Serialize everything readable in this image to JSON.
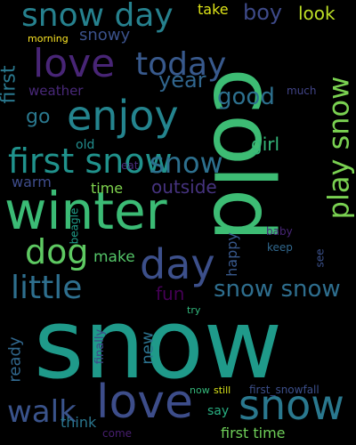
{
  "background": "#000000",
  "words": [
    {
      "text": "snow",
      "color": "#1f9a8a"
    },
    {
      "text": "cold",
      "color": "#3dbc74"
    },
    {
      "text": "winter",
      "color": "#3bbb75"
    },
    {
      "text": "enjoy",
      "color": "#24848e"
    },
    {
      "text": "love",
      "color": "#3d4d8a"
    },
    {
      "text": "love",
      "color": "#482576"
    },
    {
      "text": "snow",
      "color": "#2a788e"
    },
    {
      "text": "snow day",
      "color": "#26818e"
    },
    {
      "text": "first snow",
      "color": "#20928c"
    },
    {
      "text": "today",
      "color": "#38598c"
    },
    {
      "text": "day",
      "color": "#3c4f8a"
    },
    {
      "text": "dog",
      "color": "#5ec962"
    },
    {
      "text": "little",
      "color": "#2e6f8e"
    },
    {
      "text": "play snow",
      "color": "#7ad151"
    },
    {
      "text": "snow",
      "color": "#2d708e"
    },
    {
      "text": "snow snow",
      "color": "#2e6e8e"
    },
    {
      "text": "walk",
      "color": "#3a538b"
    },
    {
      "text": "good",
      "color": "#2d708e"
    },
    {
      "text": "boy",
      "color": "#3e4a89"
    },
    {
      "text": "year",
      "color": "#31668e"
    },
    {
      "text": "outside",
      "color": "#46337f"
    },
    {
      "text": "girl",
      "color": "#35b779"
    },
    {
      "text": "first",
      "color": "#2a788e"
    },
    {
      "text": "snowy",
      "color": "#3b528b"
    },
    {
      "text": "look",
      "color": "#bddf26"
    },
    {
      "text": "take",
      "color": "#dde318"
    },
    {
      "text": "morning",
      "color": "#fde725"
    },
    {
      "text": "weather",
      "color": "#482878"
    },
    {
      "text": "go",
      "color": "#2a788e"
    },
    {
      "text": "much",
      "color": "#414487"
    },
    {
      "text": "old",
      "color": "#228c8d"
    },
    {
      "text": "eat",
      "color": "#472d7b"
    },
    {
      "text": "warm",
      "color": "#3e4c8a"
    },
    {
      "text": "time",
      "color": "#7fd34e"
    },
    {
      "text": "beagle",
      "color": "#1f9e89"
    },
    {
      "text": "happy",
      "color": "#38588c"
    },
    {
      "text": "make",
      "color": "#54c568"
    },
    {
      "text": "fun",
      "color": "#440154"
    },
    {
      "text": "baby",
      "color": "#482677"
    },
    {
      "text": "keep",
      "color": "#31688e"
    },
    {
      "text": "see",
      "color": "#3b518b"
    },
    {
      "text": "ready",
      "color": "#31688e"
    },
    {
      "text": "new",
      "color": "#2c728e"
    },
    {
      "text": "finally",
      "color": "#404688"
    },
    {
      "text": "try",
      "color": "#31b57b"
    },
    {
      "text": "now",
      "color": "#34b679"
    },
    {
      "text": "still",
      "color": "#d8e219"
    },
    {
      "text": "first_snowfall",
      "color": "#3c4f8a"
    },
    {
      "text": "say",
      "color": "#28ae80"
    },
    {
      "text": "think",
      "color": "#2a768e"
    },
    {
      "text": "come",
      "color": "#481f70"
    },
    {
      "text": "first time",
      "color": "#6ece58"
    }
  ]
}
